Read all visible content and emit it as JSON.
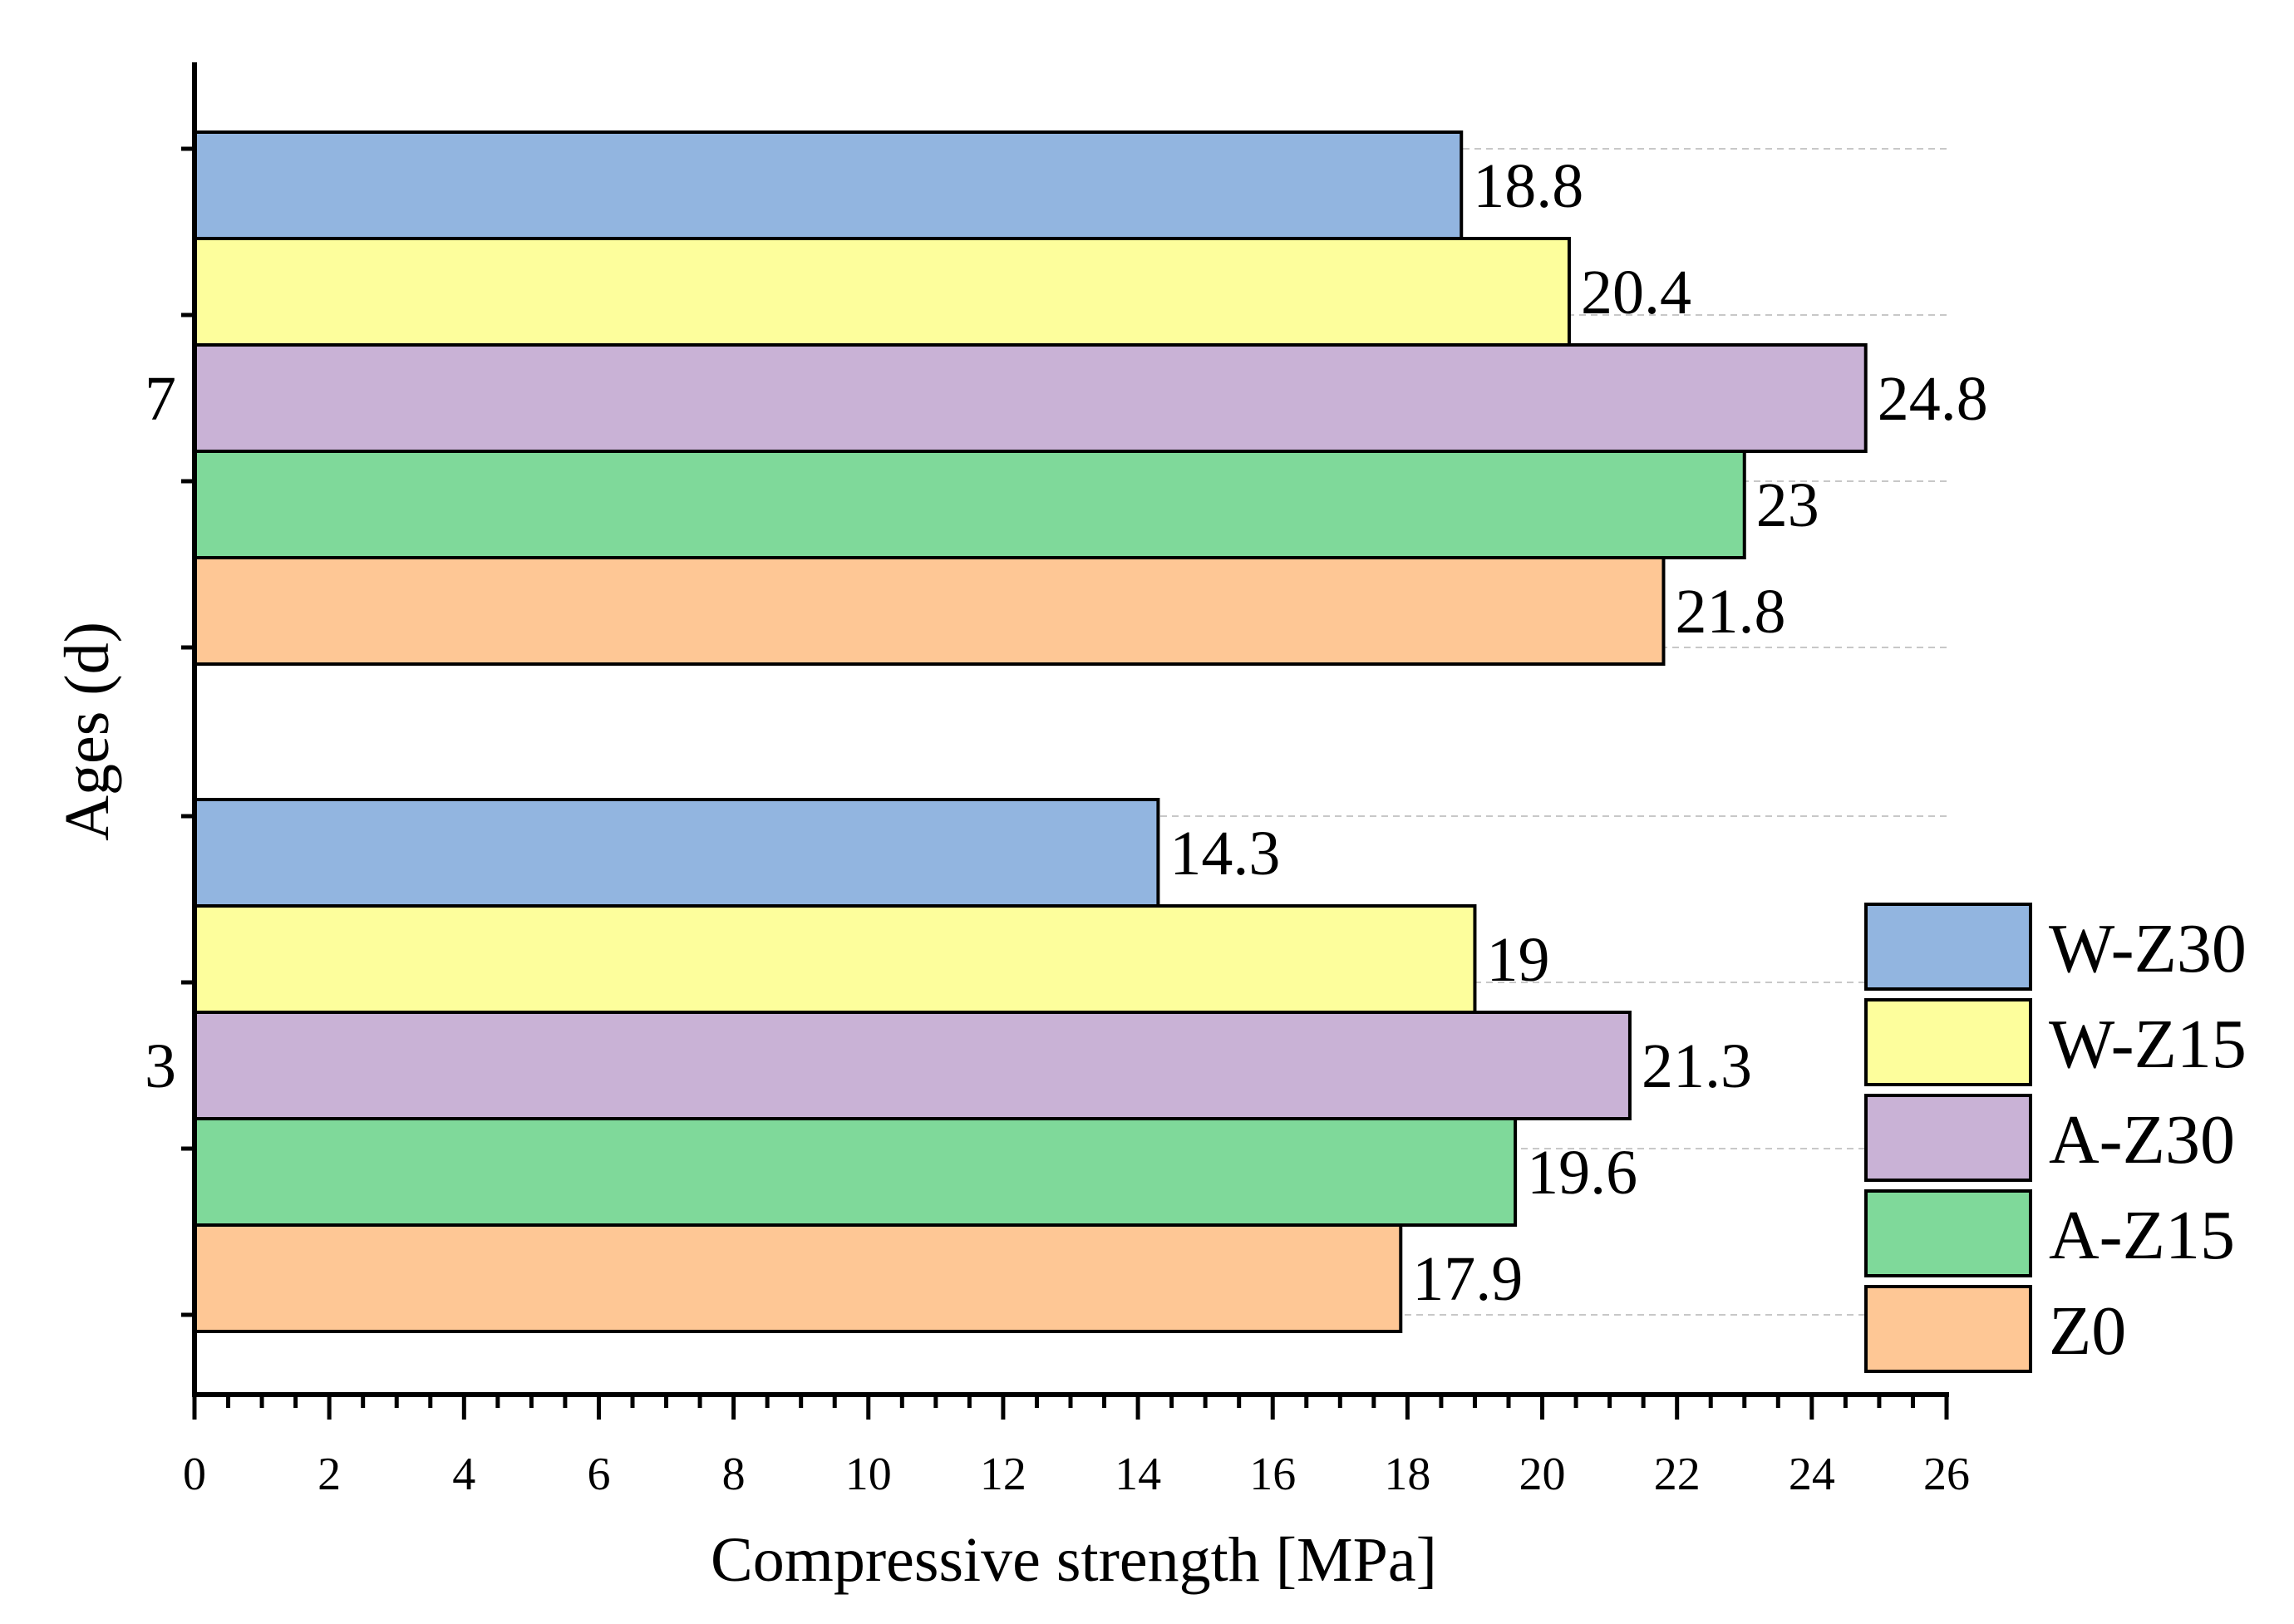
{
  "chart_data": {
    "type": "bar",
    "orientation": "horizontal",
    "title": "",
    "xlabel": "Compressive strength [MPa]",
    "ylabel": "Ages (d)",
    "xlim": [
      0,
      26
    ],
    "x_ticks": [
      "0",
      "2",
      "4",
      "6",
      "8",
      "10",
      "12",
      "14",
      "16",
      "18",
      "20",
      "22",
      "24",
      "26"
    ],
    "categories": [
      "3",
      "7"
    ],
    "grid": "dashed horizontal lines at y-axis ticks",
    "legend_position": "bottom-right",
    "series": [
      {
        "name": "W-Z30",
        "color": "#92b5e0",
        "values": [
          14.3,
          18.8
        ],
        "labels": [
          "14.3",
          "18.8"
        ]
      },
      {
        "name": "W-Z15",
        "color": "#fdfe9c",
        "values": [
          19,
          20.4
        ],
        "labels": [
          "19",
          "20.4"
        ]
      },
      {
        "name": "A-Z30",
        "color": "#c9b2d6",
        "values": [
          21.3,
          24.8
        ],
        "labels": [
          "21.3",
          "24.8"
        ]
      },
      {
        "name": "A-Z15",
        "color": "#7fd99a",
        "values": [
          19.6,
          23
        ],
        "labels": [
          "19.6",
          "23"
        ]
      },
      {
        "name": "Z0",
        "color": "#fec795",
        "values": [
          17.9,
          21.8
        ],
        "labels": [
          "17.9",
          "21.8"
        ]
      }
    ]
  }
}
